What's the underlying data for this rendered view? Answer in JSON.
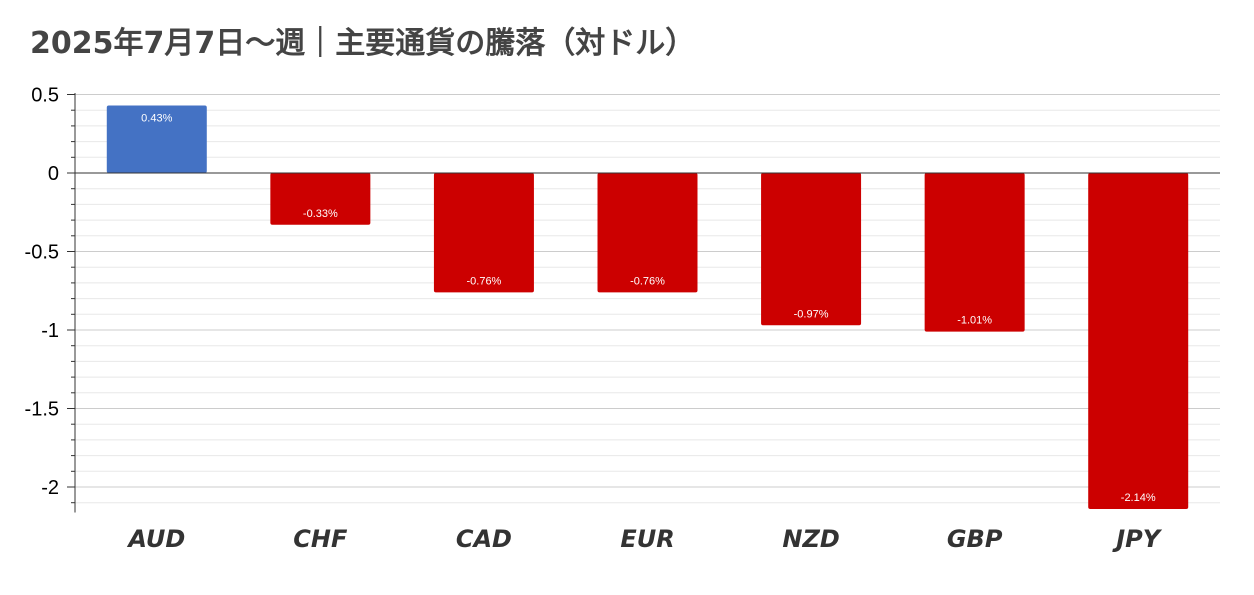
{
  "chart_data": {
    "type": "bar",
    "title": "2025年7月7日～週｜主要通貨の騰落（対ドル）",
    "categories": [
      "AUD",
      "CHF",
      "CAD",
      "EUR",
      "NZD",
      "GBP",
      "JPY"
    ],
    "values": [
      0.43,
      -0.33,
      -0.76,
      -0.76,
      -0.97,
      -1.01,
      -2.14
    ],
    "data_labels": [
      "0.43%",
      "-0.33%",
      "-0.76%",
      "-0.76%",
      "-0.97%",
      "-1.01%",
      "-2.14%"
    ],
    "ylim": [
      -2.15,
      0.5
    ],
    "yticks": [
      0.5,
      0,
      -0.5,
      -1,
      -1.5,
      -2
    ],
    "ytick_labels": [
      "0.5",
      "0",
      "-0.5",
      "-1",
      "-1.5",
      "-2"
    ],
    "xlabel": "",
    "ylabel": "",
    "grid": true,
    "colors": {
      "positive": "#4472C4",
      "negative": "#CC0000"
    }
  }
}
